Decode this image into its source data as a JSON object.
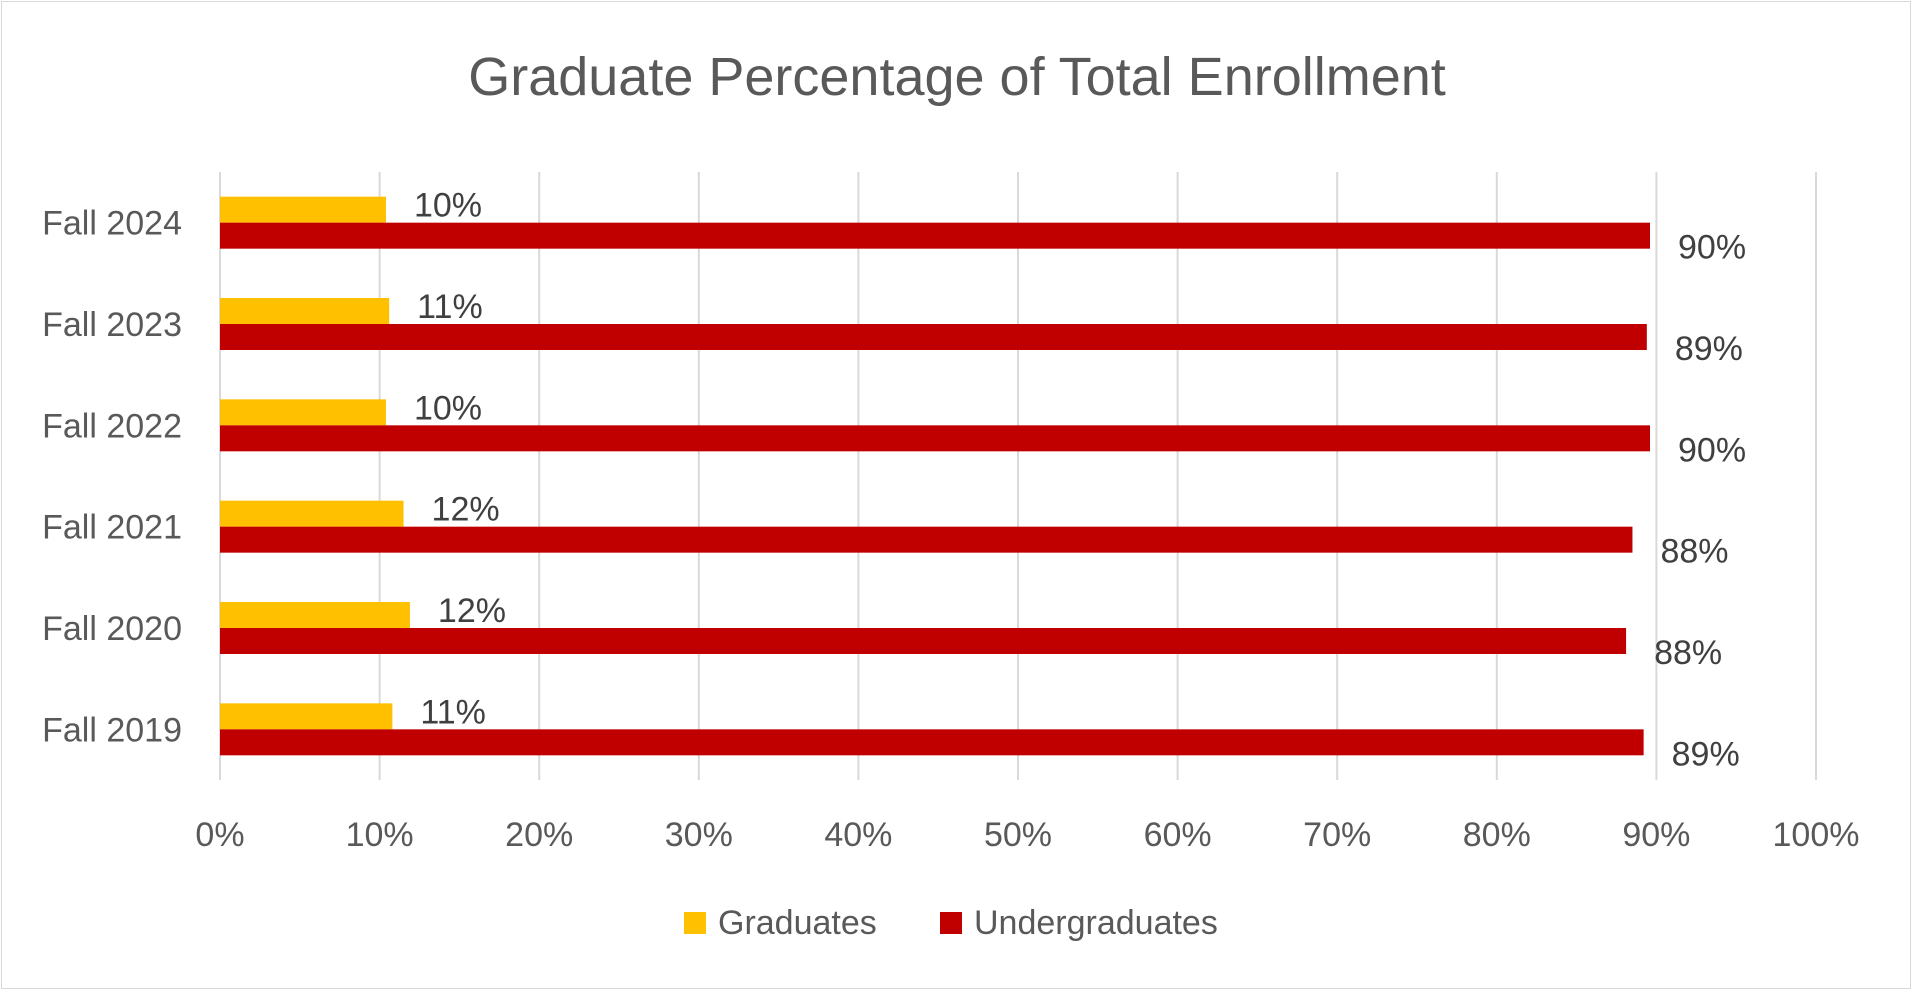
{
  "chart_data": {
    "type": "bar",
    "orientation": "horizontal",
    "title": "Graduate Percentage of Total Enrollment",
    "categories": [
      "Fall 2024",
      "Fall 2023",
      "Fall 2022",
      "Fall 2021",
      "Fall 2020",
      "Fall 2019"
    ],
    "series": [
      {
        "name": "Graduates",
        "color": "#FFC000",
        "values": [
          10.4,
          10.6,
          10.4,
          11.5,
          11.9,
          10.8
        ],
        "labels": [
          "10%",
          "11%",
          "10%",
          "12%",
          "12%",
          "11%"
        ]
      },
      {
        "name": "Undergraduates",
        "color": "#C00000",
        "values": [
          89.6,
          89.4,
          89.6,
          88.5,
          88.1,
          89.2
        ],
        "labels": [
          "90%",
          "89%",
          "90%",
          "88%",
          "88%",
          "89%"
        ]
      }
    ],
    "xlim": [
      0,
      100
    ],
    "x_ticks": [
      "0%",
      "10%",
      "20%",
      "30%",
      "40%",
      "50%",
      "60%",
      "70%",
      "80%",
      "90%",
      "100%"
    ],
    "xlabel": "",
    "ylabel": "",
    "grid": "vertical",
    "gridline_color": "#d9d9d9",
    "legend_position": "bottom"
  }
}
